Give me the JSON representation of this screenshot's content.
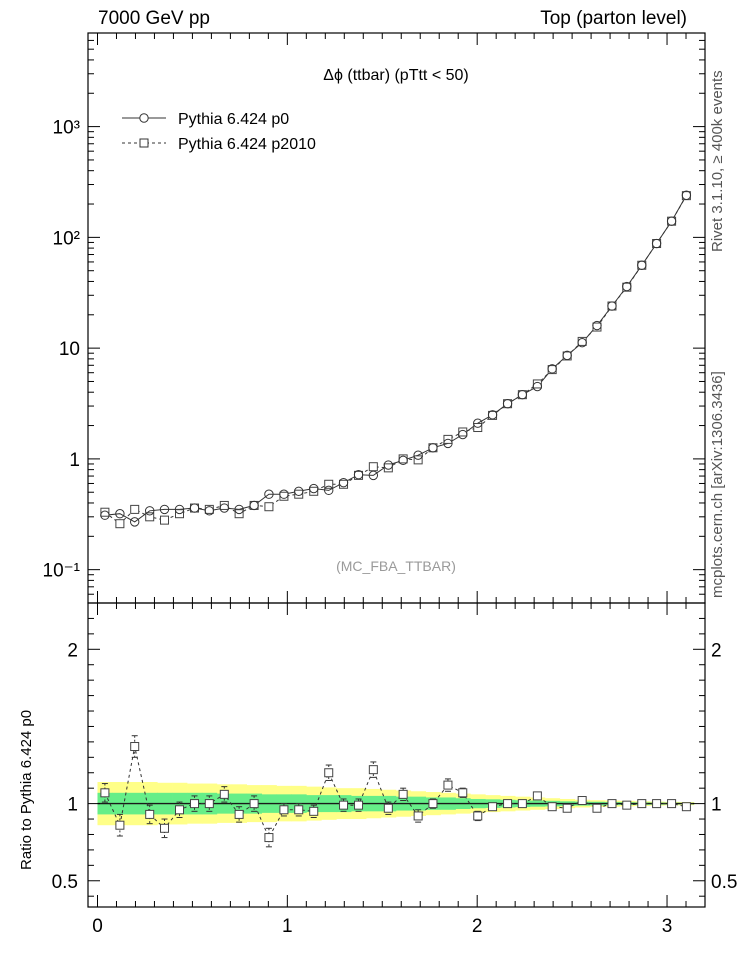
{
  "header": {
    "left": "7000 GeV pp",
    "right": "Top (parton level)"
  },
  "side_labels": {
    "rivet": "Rivet 3.1.10, ≥ 400k events",
    "mcplots": "mcplots.cern.ch [arXiv:1306.3436]"
  },
  "ratio_ylabel": "Ratio to Pythia 6.424 p0",
  "chart_data": [
    {
      "type": "scatter",
      "title": "Δϕ (ttbar) (pTtt < 50)",
      "watermark": "(MC_FBA_TTBAR)",
      "ylog": true,
      "xlim": [
        -0.05,
        3.2
      ],
      "ylim": [
        0.05,
        7000
      ],
      "y_tick_labels": [
        "10⁻¹",
        "1",
        "10",
        "10²",
        "10³"
      ],
      "legend_position": "top-left",
      "x": [
        0.039,
        0.118,
        0.196,
        0.275,
        0.353,
        0.432,
        0.511,
        0.589,
        0.668,
        0.746,
        0.825,
        0.903,
        0.982,
        1.06,
        1.139,
        1.218,
        1.296,
        1.375,
        1.453,
        1.532,
        1.61,
        1.689,
        1.767,
        1.846,
        1.924,
        2.003,
        2.081,
        2.16,
        2.238,
        2.317,
        2.395,
        2.474,
        2.553,
        2.631,
        2.71,
        2.788,
        2.867,
        2.945,
        3.024,
        3.102
      ],
      "series": [
        {
          "name": "Pythia 6.424 p0",
          "line": "solid",
          "marker": "circle",
          "values": [
            0.31,
            0.32,
            0.27,
            0.34,
            0.35,
            0.35,
            0.36,
            0.34,
            0.36,
            0.35,
            0.38,
            0.48,
            0.48,
            0.51,
            0.54,
            0.52,
            0.61,
            0.72,
            0.71,
            0.88,
            0.97,
            1.08,
            1.26,
            1.38,
            1.66,
            2.1,
            2.5,
            3.15,
            3.8,
            4.5,
            6.5,
            8.6,
            11.2,
            16.0,
            24.0,
            36.0,
            56.0,
            88.0,
            140.0,
            240.0
          ]
        },
        {
          "name": "Pythia 6.424 p2010",
          "line": "dashed",
          "marker": "square",
          "values": [
            0.33,
            0.26,
            0.35,
            0.3,
            0.28,
            0.32,
            0.36,
            0.35,
            0.38,
            0.32,
            0.38,
            0.37,
            0.46,
            0.48,
            0.51,
            0.59,
            0.59,
            0.71,
            0.85,
            0.83,
            1.0,
            0.98,
            1.26,
            1.5,
            1.75,
            1.92,
            2.47,
            3.15,
            3.8,
            4.75,
            6.4,
            8.5,
            11.5,
            15.5,
            24.0,
            35.5,
            56.0,
            88.0,
            140.0,
            238.0
          ]
        }
      ]
    },
    {
      "type": "scatter",
      "ylabel": "Ratio to Pythia 6.424 p0",
      "xlim": [
        -0.05,
        3.2
      ],
      "ylim": [
        0.33,
        2.3
      ],
      "x_tick_labels": [
        "0",
        "1",
        "2",
        "3"
      ],
      "y_tick_labels": [
        "0.5",
        "1",
        "2"
      ],
      "reference_line": 1.0,
      "band_halfwidth_green": [
        0.07,
        0.07,
        0.07,
        0.07,
        0.07,
        0.07,
        0.07,
        0.07,
        0.065,
        0.065,
        0.065,
        0.06,
        0.06,
        0.06,
        0.055,
        0.055,
        0.055,
        0.05,
        0.05,
        0.05,
        0.045,
        0.045,
        0.04,
        0.04,
        0.035,
        0.03,
        0.028,
        0.025,
        0.022,
        0.02,
        0.018,
        0.015,
        0.013,
        0.012,
        0.01,
        0.009,
        0.008,
        0.007,
        0.006,
        0.005
      ],
      "band_halfwidth_yellow": [
        0.14,
        0.14,
        0.14,
        0.14,
        0.135,
        0.135,
        0.13,
        0.13,
        0.125,
        0.125,
        0.12,
        0.12,
        0.115,
        0.115,
        0.11,
        0.105,
        0.1,
        0.1,
        0.095,
        0.09,
        0.085,
        0.08,
        0.075,
        0.07,
        0.065,
        0.06,
        0.055,
        0.05,
        0.045,
        0.04,
        0.035,
        0.03,
        0.025,
        0.022,
        0.02,
        0.018,
        0.015,
        0.013,
        0.011,
        0.01
      ],
      "series": [
        {
          "name": "Pythia 6.424 p2010",
          "line": "dashed",
          "marker": "square",
          "values": [
            1.07,
            0.86,
            1.37,
            0.93,
            0.84,
            0.96,
            1.0,
            1.0,
            1.06,
            0.93,
            1.0,
            0.78,
            0.96,
            0.96,
            0.95,
            1.2,
            0.99,
            0.99,
            1.22,
            0.97,
            1.06,
            0.92,
            1.0,
            1.12,
            1.07,
            0.92,
            0.98,
            1.0,
            1.0,
            1.05,
            0.98,
            0.97,
            1.02,
            0.97,
            1.0,
            0.99,
            1.0,
            1.0,
            1.0,
            0.98
          ],
          "errors": [
            0.06,
            0.07,
            0.07,
            0.06,
            0.06,
            0.05,
            0.05,
            0.05,
            0.05,
            0.05,
            0.05,
            0.06,
            0.04,
            0.04,
            0.04,
            0.05,
            0.04,
            0.04,
            0.05,
            0.04,
            0.04,
            0.04,
            0.03,
            0.04,
            0.03,
            0.03,
            0.02,
            0.02,
            0.02,
            0.02,
            0.01,
            0.01,
            0.01,
            0.01,
            0.01,
            0.01,
            0.01,
            0.005,
            0.005,
            0.005
          ]
        }
      ]
    }
  ]
}
